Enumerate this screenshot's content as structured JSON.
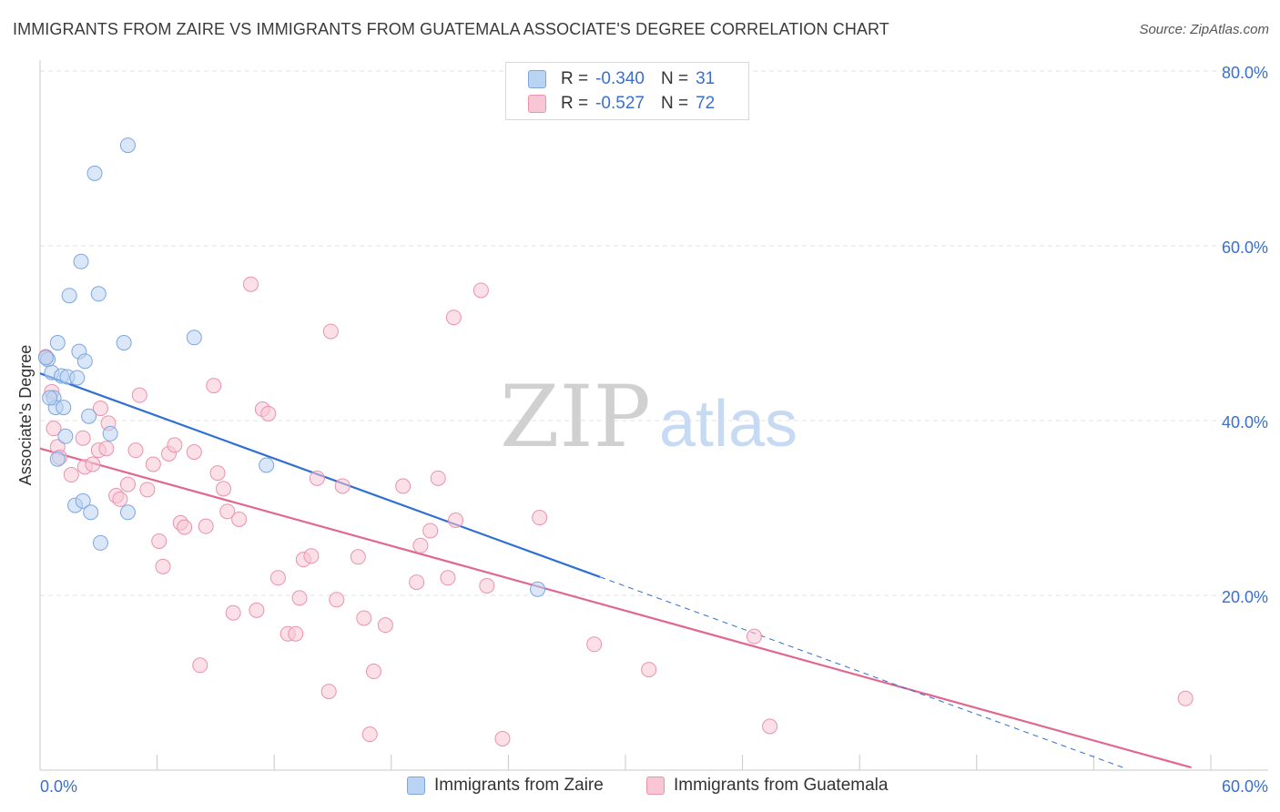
{
  "title": "IMMIGRANTS FROM ZAIRE VS IMMIGRANTS FROM GUATEMALA ASSOCIATE'S DEGREE CORRELATION CHART",
  "source": "Source: ZipAtlas.com",
  "watermark": {
    "zip": "ZIP",
    "atlas": "atlas"
  },
  "colors": {
    "zaire_fill": "#b9d3f3",
    "zaire_stroke": "#7ea6dd",
    "zaire_line": "#2f6fd1",
    "guatemala_fill": "#f8c6d5",
    "guatemala_stroke": "#e993ae",
    "guatemala_line": "#e0688f",
    "value_text": "#3b6fcb",
    "grid": "#e3e3e3"
  },
  "legend": {
    "rows": [
      {
        "r_label": "R =",
        "r_value": "-0.340",
        "n_label": "N =",
        "n_value": "31"
      },
      {
        "r_label": "R =",
        "r_value": "-0.527",
        "n_label": "N =",
        "n_value": "72"
      }
    ]
  },
  "bottom_legend": [
    "Immigrants from Zaire",
    "Immigrants from Guatemala"
  ],
  "chart_data": {
    "type": "scatter",
    "title": "IMMIGRANTS FROM ZAIRE VS IMMIGRANTS FROM GUATEMALA ASSOCIATE'S DEGREE CORRELATION CHART",
    "xlabel": "",
    "ylabel": "Associate's Degree",
    "xlim": [
      0,
      60
    ],
    "ylim": [
      0,
      80
    ],
    "x_tick_labels": [
      "0.0%",
      "60.0%"
    ],
    "y_ticks": [
      20,
      40,
      60,
      80
    ],
    "y_tick_labels": [
      "20.0%",
      "40.0%",
      "60.0%",
      "80.0%"
    ],
    "grid": true,
    "series": [
      {
        "name": "Immigrants from Zaire",
        "R": -0.34,
        "N": 31,
        "points": [
          [
            0.4,
            47.0
          ],
          [
            0.6,
            45.5
          ],
          [
            0.7,
            42.6
          ],
          [
            0.8,
            41.5
          ],
          [
            0.9,
            35.6
          ],
          [
            0.9,
            48.9
          ],
          [
            1.1,
            45.1
          ],
          [
            1.2,
            41.5
          ],
          [
            1.3,
            38.2
          ],
          [
            1.4,
            45.0
          ],
          [
            1.5,
            54.3
          ],
          [
            1.8,
            30.3
          ],
          [
            1.9,
            44.9
          ],
          [
            2.0,
            47.9
          ],
          [
            2.1,
            58.2
          ],
          [
            2.2,
            30.8
          ],
          [
            2.3,
            46.8
          ],
          [
            2.5,
            40.5
          ],
          [
            2.6,
            29.5
          ],
          [
            2.8,
            68.3
          ],
          [
            3.0,
            54.5
          ],
          [
            3.1,
            26.0
          ],
          [
            3.6,
            38.5
          ],
          [
            4.3,
            48.9
          ],
          [
            4.5,
            71.5
          ],
          [
            4.5,
            29.5
          ],
          [
            7.9,
            49.5
          ],
          [
            11.6,
            34.9
          ],
          [
            25.5,
            20.7
          ],
          [
            0.5,
            42.6
          ],
          [
            0.3,
            47.2
          ]
        ],
        "trend": {
          "x": [
            0,
            28.7
          ],
          "y": [
            45.4,
            22.1
          ],
          "dashed_extension": {
            "x": [
              28.7,
              55.5
            ],
            "y": [
              22.1,
              0.3
            ]
          }
        }
      },
      {
        "name": "Immigrants from Guatemala",
        "R": -0.527,
        "N": 72,
        "points": [
          [
            0.3,
            47.3
          ],
          [
            0.6,
            43.3
          ],
          [
            0.7,
            39.1
          ],
          [
            0.9,
            37.0
          ],
          [
            1.0,
            35.8
          ],
          [
            1.6,
            33.8
          ],
          [
            2.2,
            38.0
          ],
          [
            2.3,
            34.7
          ],
          [
            2.7,
            35.0
          ],
          [
            3.0,
            36.6
          ],
          [
            3.1,
            41.4
          ],
          [
            3.4,
            36.8
          ],
          [
            3.5,
            39.7
          ],
          [
            3.9,
            31.4
          ],
          [
            4.1,
            31.0
          ],
          [
            4.5,
            32.7
          ],
          [
            4.9,
            36.6
          ],
          [
            5.1,
            42.9
          ],
          [
            5.5,
            32.1
          ],
          [
            5.8,
            35.0
          ],
          [
            6.1,
            26.2
          ],
          [
            6.3,
            23.3
          ],
          [
            6.6,
            36.2
          ],
          [
            6.9,
            37.2
          ],
          [
            7.2,
            28.3
          ],
          [
            7.4,
            27.8
          ],
          [
            7.9,
            36.4
          ],
          [
            8.2,
            12.0
          ],
          [
            8.5,
            27.9
          ],
          [
            8.9,
            44.0
          ],
          [
            9.1,
            34.0
          ],
          [
            9.4,
            32.2
          ],
          [
            9.6,
            29.6
          ],
          [
            9.9,
            18.0
          ],
          [
            10.2,
            28.7
          ],
          [
            10.8,
            55.6
          ],
          [
            11.1,
            18.3
          ],
          [
            11.4,
            41.3
          ],
          [
            11.7,
            40.8
          ],
          [
            12.2,
            22.0
          ],
          [
            12.7,
            15.6
          ],
          [
            13.1,
            15.6
          ],
          [
            13.3,
            19.7
          ],
          [
            13.5,
            24.1
          ],
          [
            13.9,
            24.5
          ],
          [
            14.2,
            33.4
          ],
          [
            14.8,
            9.0
          ],
          [
            14.9,
            50.2
          ],
          [
            15.2,
            19.5
          ],
          [
            15.5,
            32.5
          ],
          [
            16.3,
            24.4
          ],
          [
            16.6,
            17.4
          ],
          [
            17.1,
            11.3
          ],
          [
            17.7,
            16.6
          ],
          [
            16.9,
            4.1
          ],
          [
            18.6,
            32.5
          ],
          [
            19.3,
            21.5
          ],
          [
            19.5,
            25.7
          ],
          [
            20.0,
            27.4
          ],
          [
            20.4,
            33.4
          ],
          [
            20.9,
            22.0
          ],
          [
            21.3,
            28.6
          ],
          [
            21.2,
            51.8
          ],
          [
            22.6,
            54.9
          ],
          [
            22.9,
            21.1
          ],
          [
            23.7,
            3.6
          ],
          [
            25.6,
            28.9
          ],
          [
            28.4,
            14.4
          ],
          [
            31.2,
            11.5
          ],
          [
            36.6,
            15.3
          ],
          [
            37.4,
            5.0
          ],
          [
            58.7,
            8.2
          ]
        ],
        "trend": {
          "x": [
            0,
            59.0
          ],
          "y": [
            36.8,
            0.3
          ]
        }
      }
    ]
  }
}
